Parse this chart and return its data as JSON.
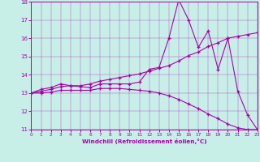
{
  "xlabel": "Windchill (Refroidissement éolien,°C)",
  "xlim": [
    0,
    23
  ],
  "ylim": [
    11,
    18
  ],
  "xticks": [
    0,
    1,
    2,
    3,
    4,
    5,
    6,
    7,
    8,
    9,
    10,
    11,
    12,
    13,
    14,
    15,
    16,
    17,
    18,
    19,
    20,
    21,
    22,
    23
  ],
  "yticks": [
    11,
    12,
    13,
    14,
    15,
    16,
    17,
    18
  ],
  "bg_color": "#c8eee8",
  "line_color": "#aa00aa",
  "line1_x": [
    0,
    1,
    2,
    3,
    4,
    5,
    6,
    7,
    8,
    9,
    10,
    11,
    12,
    13,
    14,
    15,
    16,
    17,
    18,
    19,
    20,
    21,
    22,
    23
  ],
  "line1_y": [
    13.0,
    13.2,
    13.3,
    13.5,
    13.4,
    13.35,
    13.3,
    13.5,
    13.5,
    13.5,
    13.5,
    13.6,
    14.3,
    14.4,
    16.0,
    18.1,
    17.0,
    15.5,
    16.4,
    14.3,
    16.0,
    13.1,
    11.8,
    11.0
  ],
  "line2_x": [
    0,
    1,
    2,
    3,
    4,
    5,
    6,
    7,
    8,
    9,
    10,
    11,
    12,
    13,
    14,
    15,
    16,
    17,
    18,
    19,
    20,
    21,
    22,
    23
  ],
  "line2_y": [
    13.0,
    13.1,
    13.2,
    13.35,
    13.4,
    13.4,
    13.5,
    13.65,
    13.75,
    13.85,
    13.95,
    14.05,
    14.2,
    14.35,
    14.5,
    14.75,
    15.05,
    15.25,
    15.55,
    15.75,
    16.0,
    16.1,
    16.2,
    16.3
  ],
  "line3_x": [
    0,
    1,
    2,
    3,
    4,
    5,
    6,
    7,
    8,
    9,
    10,
    11,
    12,
    13,
    14,
    15,
    16,
    17,
    18,
    19,
    20,
    21,
    22,
    23
  ],
  "line3_y": [
    13.0,
    13.0,
    13.05,
    13.15,
    13.15,
    13.15,
    13.15,
    13.25,
    13.25,
    13.25,
    13.2,
    13.15,
    13.1,
    13.0,
    12.85,
    12.65,
    12.4,
    12.15,
    11.85,
    11.6,
    11.3,
    11.1,
    11.0,
    11.0
  ]
}
